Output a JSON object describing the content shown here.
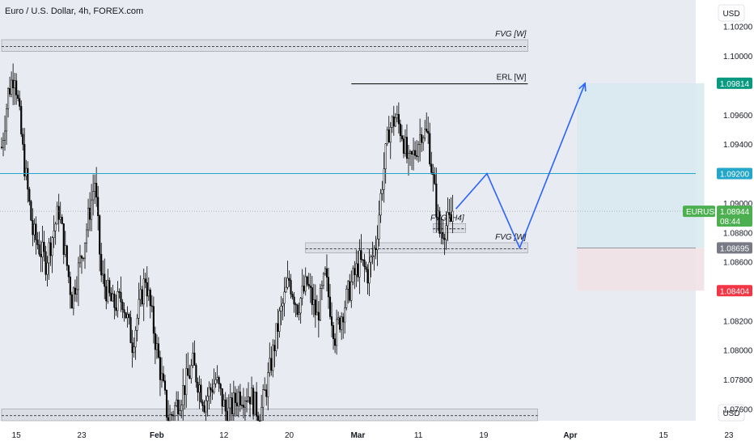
{
  "header": {
    "title": "Euro / U.S. Dollar, 4h, FOREX.com"
  },
  "currency_labels": {
    "top": "USD",
    "bottom": "USD"
  },
  "symbol_tag": {
    "name": "EURUSD",
    "price": "1.08944",
    "countdown": "08:44"
  },
  "colors": {
    "background": "#e9ebf2",
    "candle_up": "#ffffff",
    "candle_down": "#000000",
    "level_line": "#22a6c9",
    "projection": "#2962ff",
    "target_zone": "#d9eaf0",
    "stop_zone": "#f1e2e5",
    "target_badge": "#089981",
    "level_badge": "#22a6c9",
    "entry_badge": "#787b86",
    "stop_badge": "#f23645",
    "symbol_badge": "#4caf50"
  },
  "chart_data": {
    "type": "candlestick",
    "timeframe": "4h",
    "ylim": [
      1.0752,
      1.1038
    ],
    "y_ticks": [
      {
        "value": 1.102,
        "label": "1.10200"
      },
      {
        "value": 1.1,
        "label": "1.10000"
      },
      {
        "value": 1.096,
        "label": "1.09600"
      },
      {
        "value": 1.094,
        "label": "1.09400"
      },
      {
        "value": 1.09,
        "label": "1.09000"
      },
      {
        "value": 1.088,
        "label": "1.08800"
      },
      {
        "value": 1.086,
        "label": "1.08600"
      },
      {
        "value": 1.082,
        "label": "1.08200"
      },
      {
        "value": 1.08,
        "label": "1.08000"
      },
      {
        "value": 1.078,
        "label": "1.07800"
      },
      {
        "value": 1.076,
        "label": "1.07600"
      }
    ],
    "x_ticks": [
      {
        "label": "15",
        "bold": false,
        "pos": 9
      },
      {
        "label": "23",
        "bold": false,
        "pos": 49
      },
      {
        "label": "Feb",
        "bold": true,
        "pos": 95
      },
      {
        "label": "12",
        "bold": false,
        "pos": 136
      },
      {
        "label": "20",
        "bold": false,
        "pos": 176
      },
      {
        "label": "Mar",
        "bold": true,
        "pos": 218
      },
      {
        "label": "11",
        "bold": false,
        "pos": 255
      },
      {
        "label": "19",
        "bold": false,
        "pos": 295
      },
      {
        "label": "Apr",
        "bold": true,
        "pos": 348
      },
      {
        "label": "15",
        "bold": false,
        "pos": 405
      },
      {
        "label": "23",
        "bold": false,
        "pos": 445
      }
    ],
    "price_path": [
      [
        0,
        1.0938
      ],
      [
        4,
        1.0975
      ],
      [
        8,
        1.099
      ],
      [
        13,
        1.0935
      ],
      [
        19,
        1.088
      ],
      [
        27,
        1.086
      ],
      [
        35,
        1.0895
      ],
      [
        43,
        1.0835
      ],
      [
        50,
        1.087
      ],
      [
        57,
        1.0915
      ],
      [
        61,
        1.085
      ],
      [
        68,
        1.083
      ],
      [
        74,
        1.0835
      ],
      [
        80,
        1.0805
      ],
      [
        88,
        1.085
      ],
      [
        95,
        1.08
      ],
      [
        102,
        1.0752
      ],
      [
        110,
        1.077
      ],
      [
        117,
        1.079
      ],
      [
        124,
        1.0765
      ],
      [
        131,
        1.078
      ],
      [
        138,
        1.0755
      ],
      [
        145,
        1.077
      ],
      [
        152,
        1.077
      ],
      [
        158,
        1.0755
      ],
      [
        163,
        1.078
      ],
      [
        170,
        1.0822
      ],
      [
        176,
        1.0848
      ],
      [
        181,
        1.083
      ],
      [
        187,
        1.0845
      ],
      [
        193,
        1.0822
      ],
      [
        198,
        1.085
      ],
      [
        204,
        1.081
      ],
      [
        209,
        1.0828
      ],
      [
        214,
        1.0845
      ],
      [
        219,
        1.086
      ],
      [
        224,
        1.0852
      ],
      [
        229,
        1.0872
      ],
      [
        233,
        1.0915
      ],
      [
        237,
        1.095
      ],
      [
        241,
        1.0958
      ],
      [
        245,
        1.0948
      ],
      [
        249,
        1.0925
      ],
      [
        253,
        1.0935
      ],
      [
        257,
        1.095
      ],
      [
        261,
        1.0945
      ],
      [
        264,
        1.0915
      ],
      [
        268,
        1.088
      ],
      [
        272,
        1.0885
      ],
      [
        276,
        1.0888
      ]
    ],
    "horizontal_levels": [
      {
        "value": 1.092,
        "label": "1.09200",
        "color_key": "level_badge"
      },
      {
        "value": 1.08695,
        "label": "1.08695",
        "color_key": "entry_badge"
      }
    ],
    "price_badges": [
      {
        "value": 1.09814,
        "label": "1.09814",
        "color_key": "target_badge"
      },
      {
        "value": 1.08404,
        "label": "1.08404",
        "color_key": "stop_badge"
      }
    ],
    "last_price": 1.08944,
    "zones": [
      {
        "label": "FVG [W]",
        "y_from": 1.1003,
        "y_to": 1.1011,
        "x_from": 0,
        "x_to": 322
      },
      {
        "label": "FVG [W]",
        "y_from": 1.0866,
        "y_to": 1.0873,
        "x_from": 186,
        "x_to": 322
      },
      {
        "label": "",
        "y_from": 1.0752,
        "y_to": 1.076,
        "x_from": 0,
        "x_to": 328
      },
      {
        "label": "FVG [H4]",
        "y_from": 1.088,
        "y_to": 1.0886,
        "x_from": 264,
        "x_to": 284
      }
    ],
    "erl": {
      "label": "ERL [W]",
      "value": 1.0981,
      "x_from": 214,
      "x_to": 322
    },
    "projection_path": [
      [
        278,
        1.0896
      ],
      [
        297,
        1.092
      ],
      [
        317,
        1.08695
      ],
      [
        357,
        1.09814
      ]
    ],
    "long_position": {
      "entry": 1.08695,
      "target": 1.09814,
      "stop": 1.08404,
      "x_from": 352,
      "x_to": 430
    }
  }
}
